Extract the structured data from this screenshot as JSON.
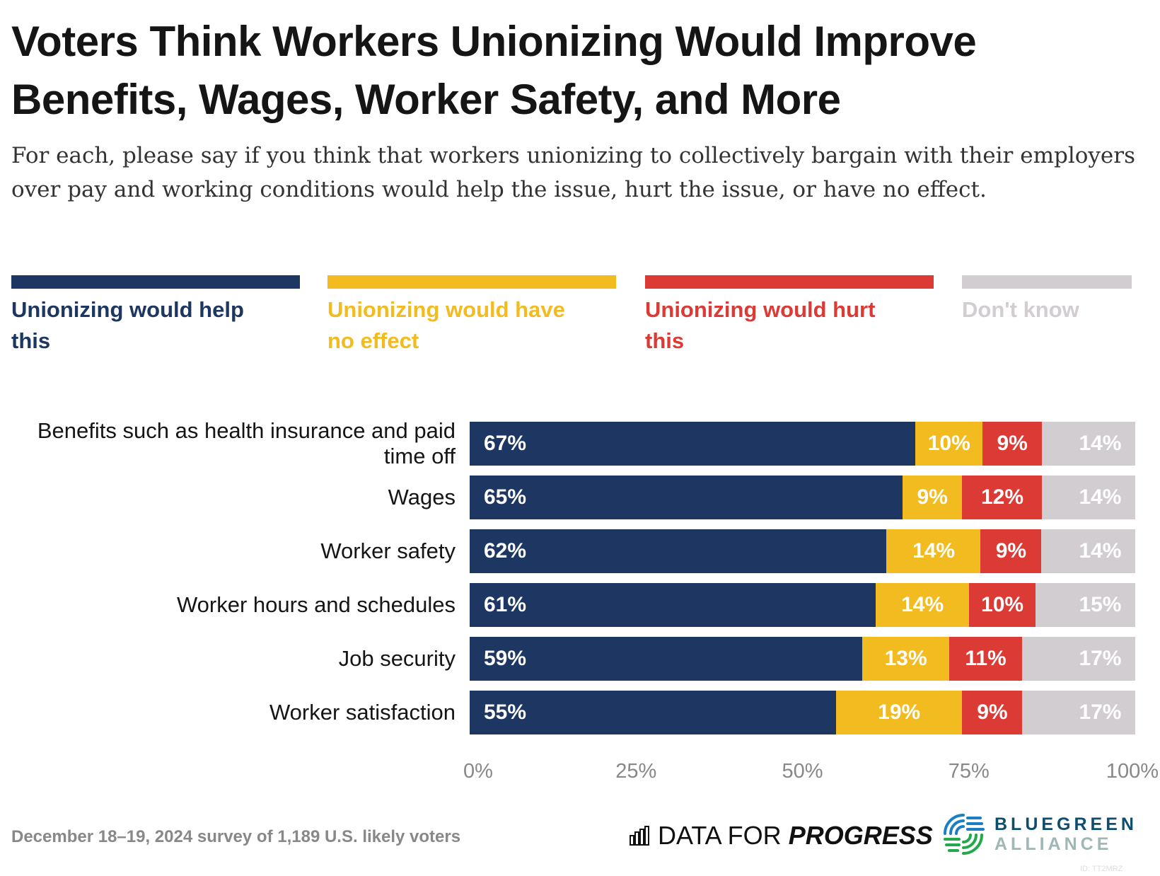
{
  "title": "Voters Think Workers Unionizing Would Improve Benefits, Wages, Worker Safety, and More",
  "subtitle": "For each, please say if you think that workers unionizing to collectively bargain with their employers over pay and working conditions would help the issue, hurt the issue, or have no effect.",
  "chart_data": {
    "type": "bar",
    "orientation": "horizontal",
    "stacked": true,
    "categories": [
      "Benefits such as health insurance and paid time off",
      "Wages",
      "Worker safety",
      "Worker hours and schedules",
      "Job security",
      "Worker satisfaction"
    ],
    "series": [
      {
        "name": "Unionizing would help this",
        "color": "#1d3762",
        "values": [
          67,
          65,
          62,
          61,
          59,
          55
        ]
      },
      {
        "name": "Unionizing would have no effect",
        "color": "#f2bb1f",
        "values": [
          10,
          9,
          14,
          14,
          13,
          19
        ]
      },
      {
        "name": "Unionizing would hurt this",
        "color": "#dc3a35",
        "values": [
          9,
          12,
          9,
          10,
          11,
          9
        ]
      },
      {
        "name": "Don't know",
        "color": "#d1cdd0",
        "values": [
          14,
          14,
          14,
          15,
          17,
          17
        ]
      }
    ],
    "xlim": [
      0,
      100
    ],
    "xticks": [
      "0%",
      "25%",
      "50%",
      "75%",
      "100%"
    ],
    "legend": "top",
    "grid": false
  },
  "footer": {
    "note": "December 18–19, 2024 survey of 1,189 U.S. likely voters",
    "logo1_a": "DATA FOR ",
    "logo1_b": "PROGRESS",
    "logo2_a": "BLUEGREEN",
    "logo2_b": "ALLIANCE",
    "id": "ID: TT2MRZ"
  }
}
